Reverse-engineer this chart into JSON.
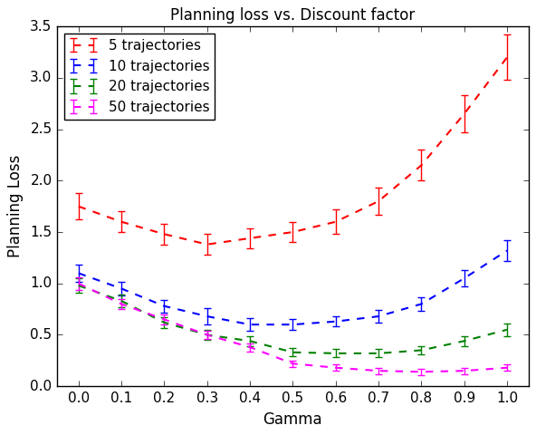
{
  "title": "Planning loss vs. Discount factor",
  "xlabel": "Gamma",
  "ylabel": "Planning Loss",
  "xlim": [
    -0.05,
    1.05
  ],
  "ylim": [
    0.0,
    3.5
  ],
  "xticks": [
    0.0,
    0.1,
    0.2,
    0.3,
    0.4,
    0.5,
    0.6,
    0.7,
    0.8,
    0.9,
    1.0
  ],
  "yticks": [
    0.0,
    0.5,
    1.0,
    1.5,
    2.0,
    2.5,
    3.0,
    3.5
  ],
  "gamma": [
    0.0,
    0.1,
    0.2,
    0.3,
    0.4,
    0.5,
    0.6,
    0.7,
    0.8,
    0.9,
    1.0
  ],
  "series": [
    {
      "label": "5 trajectories",
      "color": "red",
      "y": [
        1.75,
        1.6,
        1.48,
        1.38,
        1.44,
        1.5,
        1.6,
        1.8,
        2.15,
        2.65,
        3.2
      ],
      "yerr": [
        0.13,
        0.1,
        0.1,
        0.1,
        0.1,
        0.1,
        0.12,
        0.13,
        0.15,
        0.18,
        0.22
      ]
    },
    {
      "label": "10 trajectories",
      "color": "blue",
      "y": [
        1.1,
        0.95,
        0.78,
        0.68,
        0.6,
        0.6,
        0.63,
        0.68,
        0.8,
        1.05,
        1.32
      ],
      "yerr": [
        0.08,
        0.07,
        0.06,
        0.08,
        0.06,
        0.05,
        0.05,
        0.06,
        0.07,
        0.08,
        0.1
      ]
    },
    {
      "label": "20 trajectories",
      "color": "green",
      "y": [
        0.98,
        0.83,
        0.62,
        0.5,
        0.44,
        0.33,
        0.32,
        0.32,
        0.35,
        0.44,
        0.55
      ],
      "yerr": [
        0.07,
        0.06,
        0.05,
        0.05,
        0.05,
        0.04,
        0.04,
        0.04,
        0.04,
        0.05,
        0.06
      ]
    },
    {
      "label": "50 trajectories",
      "color": "magenta",
      "y": [
        1.0,
        0.8,
        0.65,
        0.5,
        0.38,
        0.22,
        0.18,
        0.15,
        0.14,
        0.15,
        0.18
      ],
      "yerr": [
        0.06,
        0.05,
        0.05,
        0.04,
        0.04,
        0.03,
        0.03,
        0.03,
        0.03,
        0.03,
        0.03
      ]
    }
  ],
  "legend_loc": "upper left",
  "figsize": [
    5.92,
    4.8
  ],
  "dpi": 100,
  "background_color": "#ffffff",
  "title_fontsize": 12,
  "label_fontsize": 12,
  "tick_fontsize": 11,
  "legend_fontsize": 11
}
